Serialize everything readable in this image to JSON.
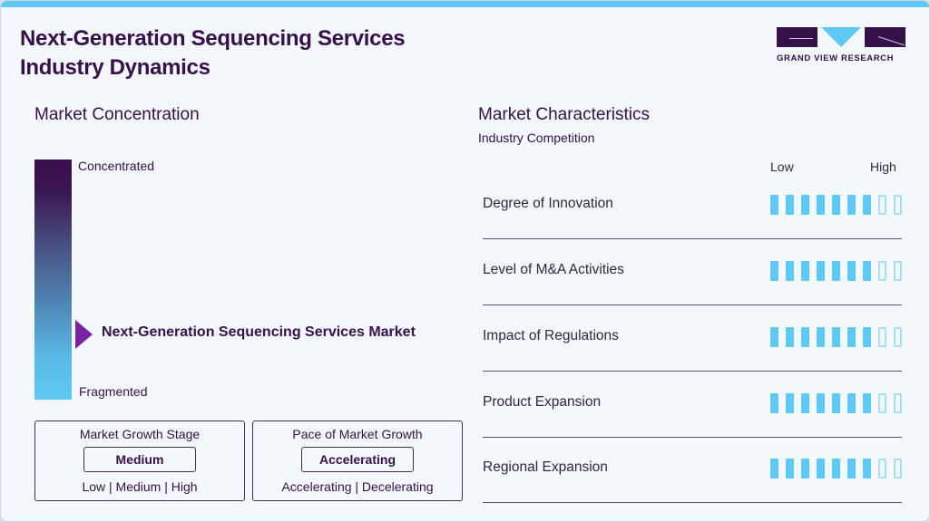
{
  "header": {
    "title_line1": "Next-Generation Sequencing Services",
    "title_line2": "Industry Dynamics",
    "logo_text": "GRAND VIEW RESEARCH"
  },
  "concentration": {
    "heading": "Market Concentration",
    "top_label": "Concentrated",
    "bottom_label": "Fragmented",
    "marker_label": "Next-Generation Sequencing Services Market",
    "marker_position_pct": 72
  },
  "growth_stage": {
    "heading": "Market Growth Stage",
    "value": "Medium",
    "options": "Low | Medium | High"
  },
  "growth_pace": {
    "heading": "Pace of Market Growth",
    "value": "Accelerating",
    "options": "Accelerating | Decelerating"
  },
  "characteristics": {
    "heading": "Market Characteristics",
    "subheading": "Industry Competition",
    "scale_low": "Low",
    "scale_high": "High",
    "max_score": 9,
    "rows": [
      {
        "label": "Degree of Innovation",
        "score": 7
      },
      {
        "label": "Level of M&A Activities",
        "score": 7
      },
      {
        "label": "Impact of Regulations",
        "score": 7
      },
      {
        "label": "Product Expansion",
        "score": 7
      },
      {
        "label": "Regional Expansion",
        "score": 7
      }
    ]
  },
  "colors": {
    "brand_purple": "#36104a",
    "accent_blue": "#5ec9f3",
    "marker_purple": "#7a23a0"
  },
  "chart_data": {
    "type": "bar",
    "title": "Market Characteristics - Industry Competition",
    "categories": [
      "Degree of Innovation",
      "Level of M&A Activities",
      "Impact of Regulations",
      "Product Expansion",
      "Regional Expansion"
    ],
    "values": [
      7,
      7,
      7,
      7,
      7
    ],
    "xlabel": "",
    "ylabel": "Low to High",
    "ylim": [
      0,
      9
    ]
  }
}
